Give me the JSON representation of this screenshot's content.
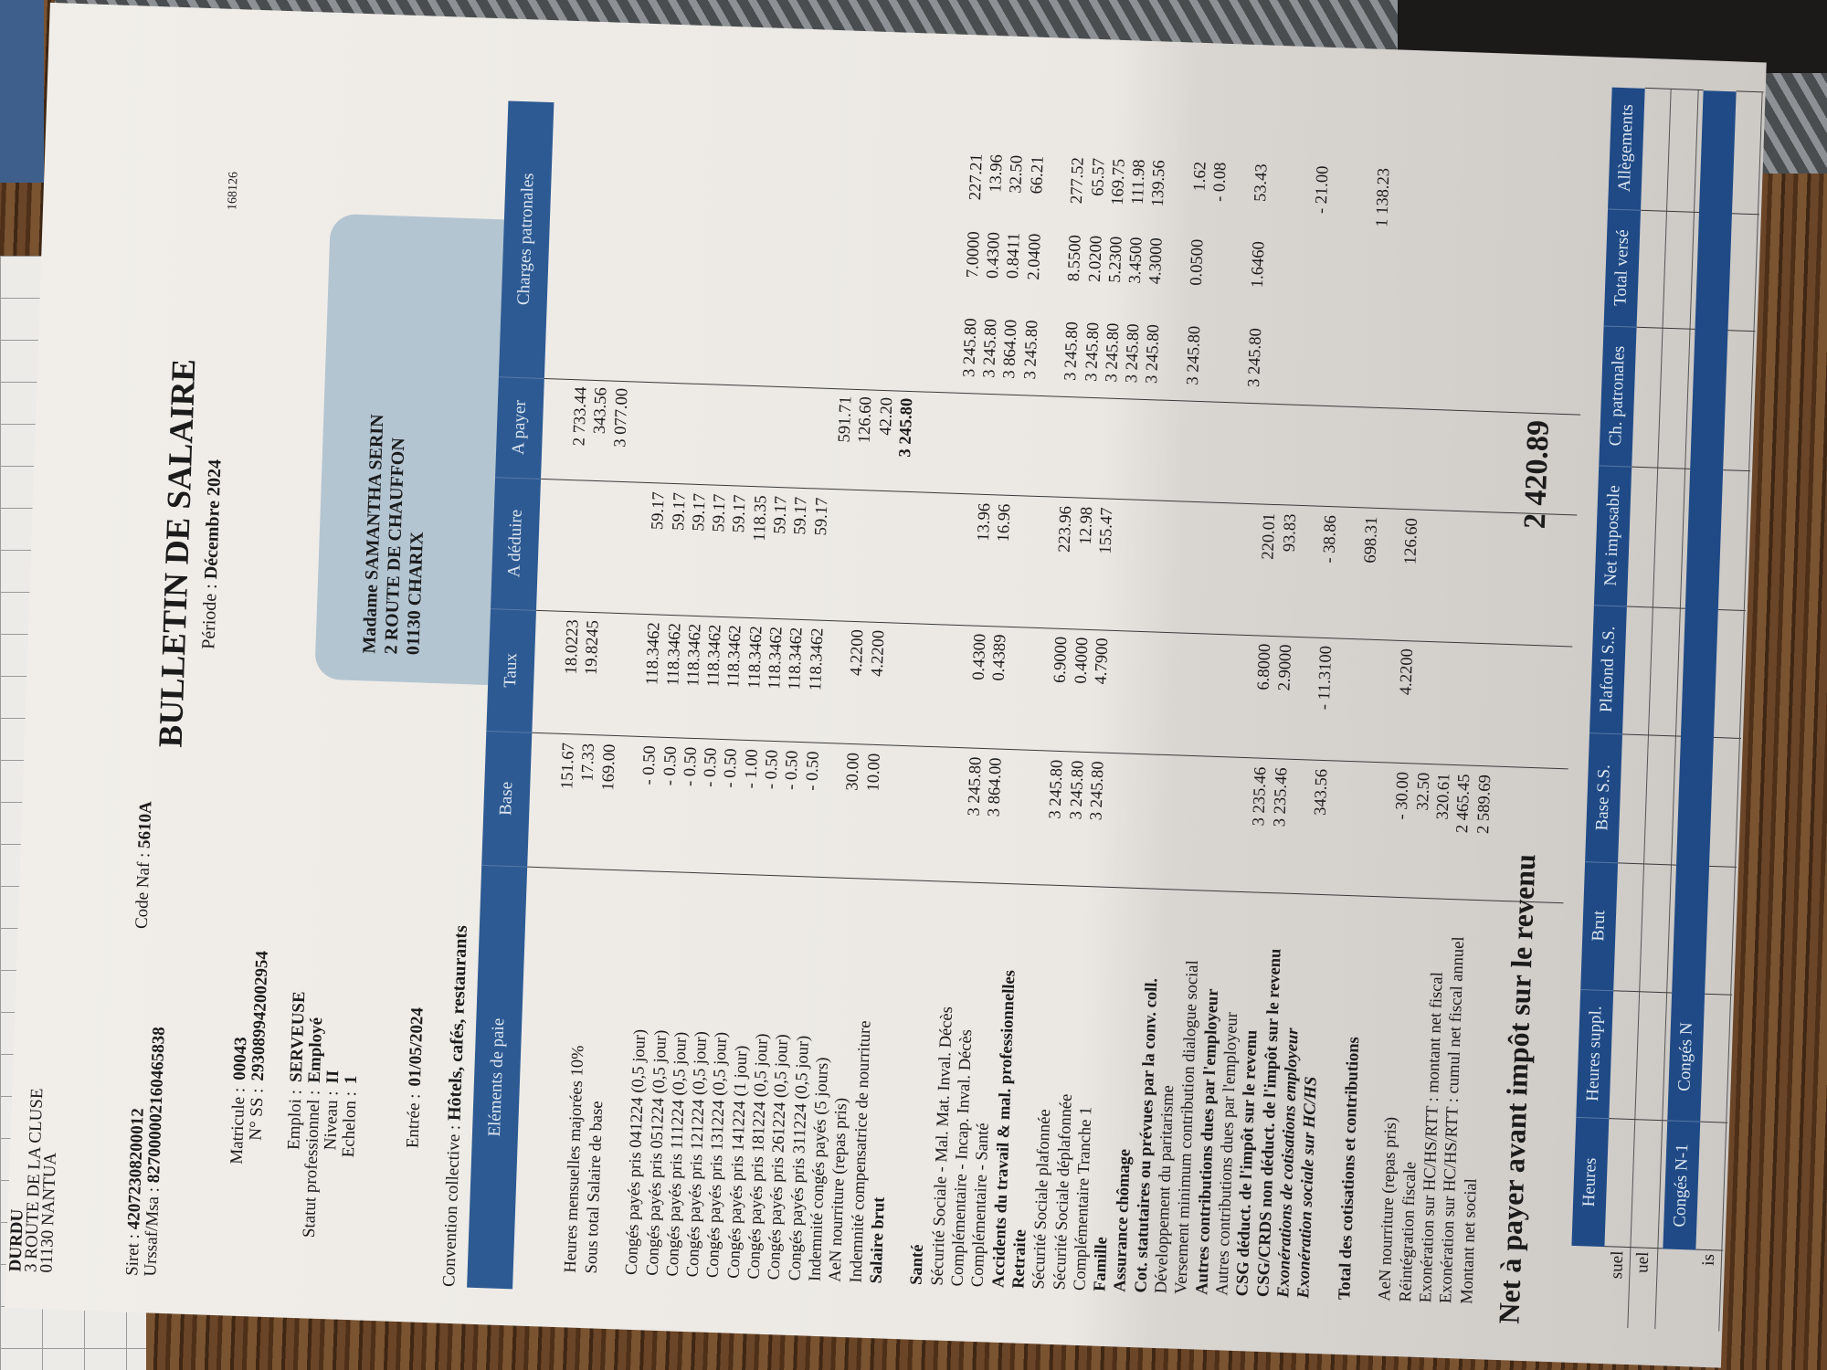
{
  "company": {
    "name": "DURDU",
    "address1": "3 ROUTE DE LA CLUSE",
    "address2": "01130 NANTUA",
    "siret_label": "Siret :",
    "siret": "42072308200012",
    "naf_label": "Code Naf :",
    "naf": "5610A",
    "urssaf_label": "Urssaf/Msa :",
    "urssaf": "827000002160465838"
  },
  "document": {
    "title": "BULLETIN DE SALAIRE",
    "period_label": "Période :",
    "period": "Décembre 2024",
    "ref": "168126"
  },
  "employee": {
    "matricule_label": "Matricule :",
    "matricule": "00043",
    "ss_label": "N° SS :",
    "ss": "293089942002954",
    "emploi_label": "Emploi :",
    "emploi": "SERVEUSE",
    "statut_label": "Statut professionnel :",
    "statut": "Employé",
    "niveau_label": "Niveau :",
    "niveau": "II",
    "echelon_label": "Echelon :",
    "echelon": "1",
    "entree_label": "Entrée :",
    "entree": "01/05/2024",
    "convention_label": "Convention collective :",
    "convention": "Hôtels, cafés, restaurants"
  },
  "recipient": {
    "line1": "Madame SAMANTHA SERIN",
    "line2": "2 ROUTE DE CHAUFFON",
    "line3": "01130 CHARIX"
  },
  "table": {
    "headers": {
      "elements": "Eléments de paie",
      "base": "Base",
      "taux": "Taux",
      "deduire": "A déduire",
      "payer": "A payer",
      "charges": "Charges patronales"
    },
    "rows": [
      {
        "label": "",
        "base": "151.67",
        "taux": "18.0223",
        "payer": "2 733.44"
      },
      {
        "label": "Heures mensuelles majorées 10%",
        "base": "17.33",
        "taux": "19.8245",
        "payer": "343.56"
      },
      {
        "label": "Sous total Salaire de base",
        "base": "169.00",
        "payer": "3 077.00"
      },
      {
        "blank": true
      },
      {
        "label": "Congés payés pris 041224 (0,5 jour)",
        "base": "- 0.50",
        "taux": "118.3462",
        "deduire": "59.17"
      },
      {
        "label": "Congés payés pris 051224 (0,5 jour)",
        "base": "- 0.50",
        "taux": "118.3462",
        "deduire": "59.17"
      },
      {
        "label": "Congés payés pris 111224 (0,5 jour)",
        "base": "- 0.50",
        "taux": "118.3462",
        "deduire": "59.17"
      },
      {
        "label": "Congés payés pris 121224 (0,5 jour)",
        "base": "- 0.50",
        "taux": "118.3462",
        "deduire": "59.17"
      },
      {
        "label": "Congés payés pris 131224 (0,5 jour)",
        "base": "- 0.50",
        "taux": "118.3462",
        "deduire": "59.17"
      },
      {
        "label": "Congés payés pris 141224 (1 jour)",
        "base": "- 1.00",
        "taux": "118.3462",
        "deduire": "118.35"
      },
      {
        "label": "Congés payés pris 181224 (0,5 jour)",
        "base": "- 0.50",
        "taux": "118.3462",
        "deduire": "59.17"
      },
      {
        "label": "Congés payés pris 261224 (0,5 jour)",
        "base": "- 0.50",
        "taux": "118.3462",
        "deduire": "59.17"
      },
      {
        "label": "Congés payés pris 311224 (0,5 jour)",
        "base": "- 0.50",
        "taux": "118.3462",
        "deduire": "59.17"
      },
      {
        "label": "Indemnité congés payés (5 jours)",
        "payer": "591.71"
      },
      {
        "label": "AeN nourriture (repas pris)",
        "base": "30.00",
        "taux": "4.2200",
        "payer": "126.60"
      },
      {
        "label": "Indemnité compensatrice de nourriture",
        "base": "10.00",
        "taux": "4.2200",
        "payer": "42.20"
      },
      {
        "label": "Salaire brut",
        "style": "b",
        "payer": "3 245.80"
      },
      {
        "blank": true
      },
      {
        "label": "Santé",
        "style": "b"
      },
      {
        "label": "Sécurité Sociale - Mal. Mat. Inval. Décès",
        "cp_base": "3 245.80",
        "cp_taux": "7.0000",
        "cp_montant": "227.21"
      },
      {
        "label": "Complémentaire - Incap. Inval. Décès",
        "base": "3 245.80",
        "taux": "0.4300",
        "deduire": "13.96",
        "cp_base": "3 245.80",
        "cp_taux": "0.4300",
        "cp_montant": "13.96"
      },
      {
        "label": "Complémentaire - Santé",
        "base": "3 864.00",
        "taux": "0.4389",
        "deduire": "16.96",
        "cp_base": "3 864.00",
        "cp_taux": "0.8411",
        "cp_montant": "32.50"
      },
      {
        "label": "Accidents du travail & mal. professionnelles",
        "style": "b",
        "cp_base": "3 245.80",
        "cp_taux": "2.0400",
        "cp_montant": "66.21"
      },
      {
        "label": "Retraite",
        "style": "b"
      },
      {
        "label": "Sécurité Sociale plafonnée",
        "base": "3 245.80",
        "taux": "6.9000",
        "deduire": "223.96",
        "cp_base": "3 245.80",
        "cp_taux": "8.5500",
        "cp_montant": "277.52"
      },
      {
        "label": "Sécurité Sociale déplafonnée",
        "base": "3 245.80",
        "taux": "0.4000",
        "deduire": "12.98",
        "cp_base": "3 245.80",
        "cp_taux": "2.0200",
        "cp_montant": "65.57"
      },
      {
        "label": "Complémentaire Tranche 1",
        "base": "3 245.80",
        "taux": "4.7900",
        "deduire": "155.47",
        "cp_base": "3 245.80",
        "cp_taux": "5.2300",
        "cp_montant": "169.75"
      },
      {
        "label": "Famille",
        "style": "b",
        "cp_base": "3 245.80",
        "cp_taux": "3.4500",
        "cp_montant": "111.98"
      },
      {
        "label": "Assurance chômage",
        "style": "b",
        "cp_base": "3 245.80",
        "cp_taux": "4.3000",
        "cp_montant": "139.56"
      },
      {
        "label": "Cot. statutaires ou prévues par la conv. coll.",
        "style": "b"
      },
      {
        "label": "Développement du paritarisme",
        "cp_base": "3 245.80",
        "cp_taux": "0.0500",
        "cp_montant": "1.62"
      },
      {
        "label": "Versement minimum contribution dialogue social",
        "cp_montant": "- 0.08"
      },
      {
        "label": "Autres contributions dues par l'employeur",
        "style": "b"
      },
      {
        "label": "Autres contributions dues par l'employeur",
        "cp_base": "3 245.80",
        "cp_taux": "1.6460",
        "cp_montant": "53.43"
      },
      {
        "label": "CSG déduct. de l'impôt sur le revenu",
        "style": "b",
        "base": "3 235.46",
        "taux": "6.8000",
        "deduire": "220.01"
      },
      {
        "label": "CSG/CRDS non déduct. de l'impôt sur le revenu",
        "style": "b",
        "base": "3 235.46",
        "taux": "2.9000",
        "deduire": "93.83"
      },
      {
        "label": "Exonérations de cotisations employeur",
        "style": "bi",
        "cp_montant": "- 21.00"
      },
      {
        "label": "Exonération sociale sur HC/HS",
        "style": "bi",
        "base": "343.56",
        "taux": "- 11.3100",
        "deduire": "- 38.86"
      },
      {
        "blank": true
      },
      {
        "label": "Total des cotisations et contributions",
        "style": "b",
        "deduire": "698.31",
        "cp_montant": "1 138.23"
      },
      {
        "blank": true
      },
      {
        "label": "AeN nourriture (repas pris)",
        "base": "- 30.00",
        "taux": "4.2200",
        "deduire": "126.60"
      },
      {
        "label": "Réintégration fiscale",
        "base": "32.50"
      },
      {
        "label": "Exonération sur HC/HS/RTT : montant net fiscal",
        "base": "320.61"
      },
      {
        "label": "Exonération sur HC/HS/RTT : cumul net fiscal annuel",
        "base": "2 465.45"
      },
      {
        "label": "Montant net social",
        "base": "2 589.69"
      }
    ]
  },
  "net": {
    "label": "Net à payer avant impôt sur le revenu",
    "amount": "2 420.89"
  },
  "summary": {
    "headers": [
      "Heures",
      "Heures suppl.",
      "Brut",
      "Base S.S.",
      "Plafond S.S.",
      "Net imposable",
      "Ch. patronales",
      "Total versé",
      "Allègements"
    ],
    "row_labels": [
      "suel",
      "uel"
    ],
    "conges_headers": [
      "Congés N-1",
      "Congés N"
    ],
    "conges_row_label": "is"
  },
  "colors": {
    "header_blue": "#2d5a93",
    "address_box": "#b4c5d2",
    "paper": "#eeebe6"
  }
}
